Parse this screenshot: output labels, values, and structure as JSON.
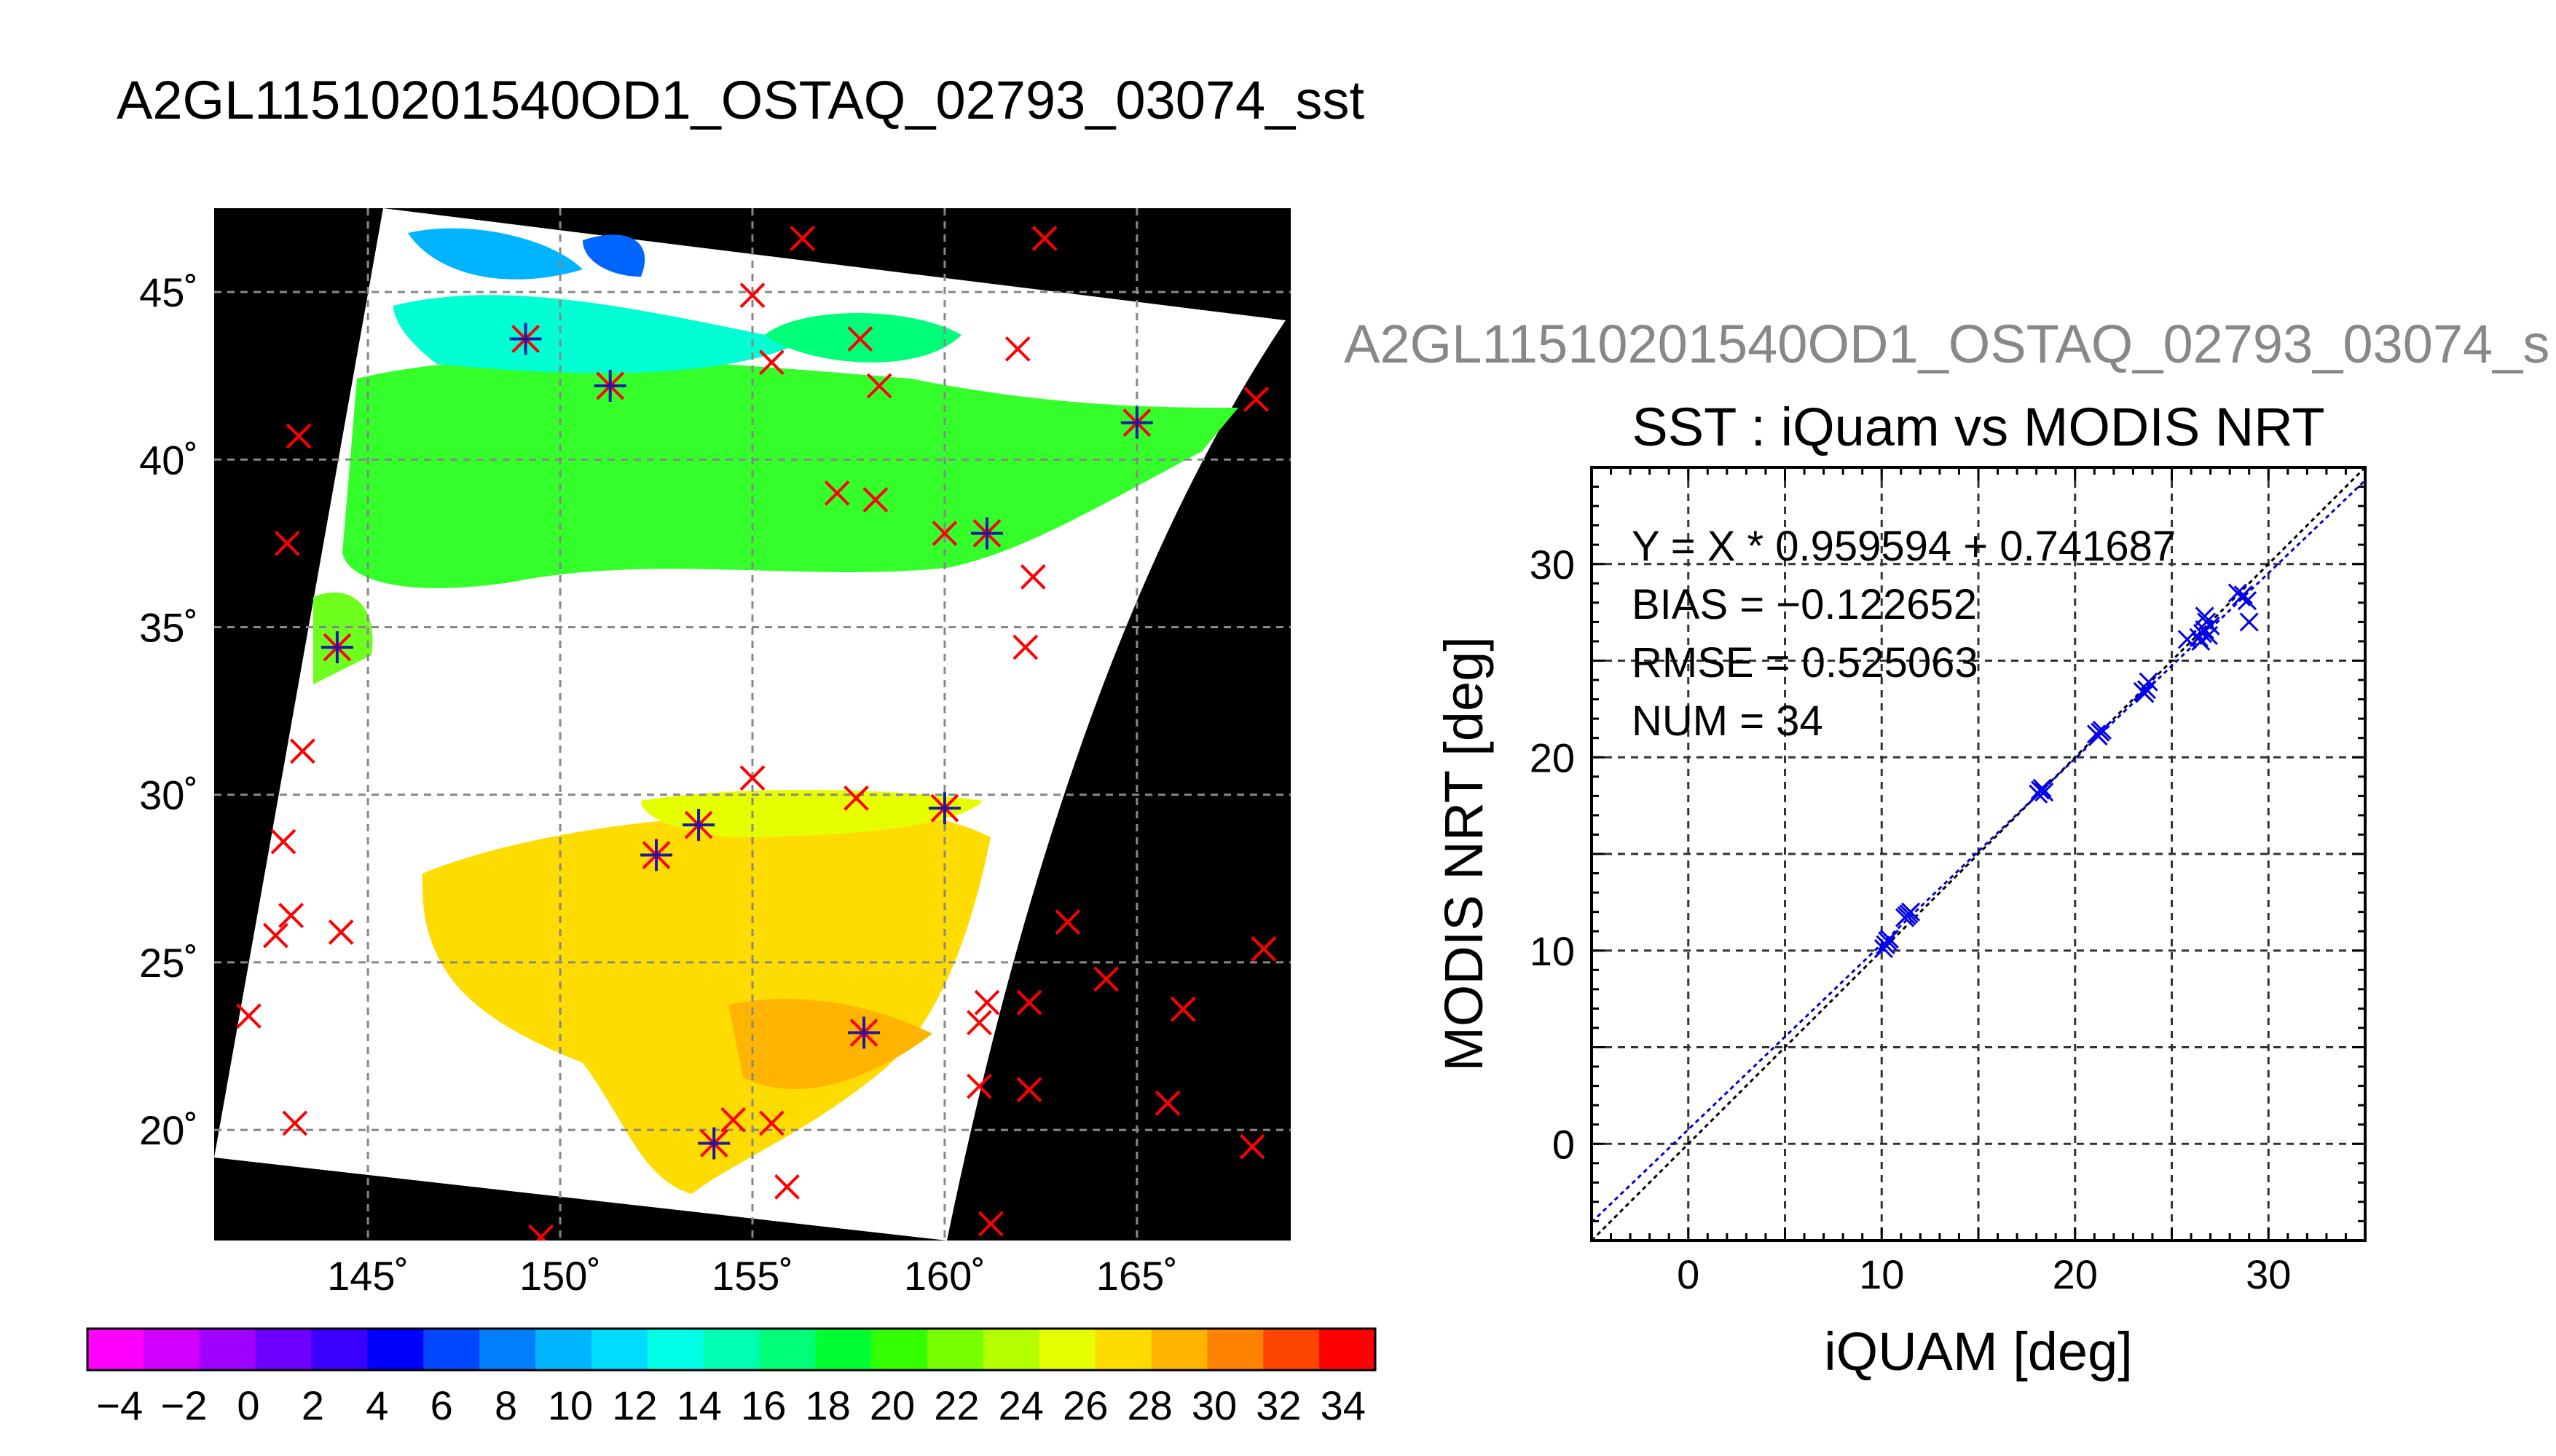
{
  "main_title": "A2GL11510201540OD1_OSTAQ_02793_03074_sst",
  "scatter_top_title": "A2GL11510201540OD1_OSTAQ_02793_03074_s",
  "colorbar": {
    "tick_labels": [
      "−4",
      "−2",
      "0",
      "2",
      "4",
      "6",
      "8",
      "10",
      "12",
      "14",
      "16",
      "18",
      "20",
      "22",
      "24",
      "26",
      "28",
      "30",
      "32",
      "34"
    ],
    "colors": [
      "#ff00ff",
      "#d200ff",
      "#a000ff",
      "#6e00ff",
      "#3c00ff",
      "#0000ff",
      "#0046ff",
      "#0080ff",
      "#00b4ff",
      "#00dcff",
      "#00ffe6",
      "#00ffb4",
      "#00ff78",
      "#00ff32",
      "#32ff00",
      "#78ff00",
      "#b4ff00",
      "#e6ff00",
      "#ffdc00",
      "#ffb400",
      "#ff8200",
      "#ff4600",
      "#ff0000"
    ]
  },
  "chart_data": [
    {
      "type": "scatter",
      "title": "A2GL11510201540OD1_OSTAQ_02793_03074_sst",
      "xlabel": "",
      "ylabel": "",
      "xlim": [
        141,
        169
      ],
      "ylim": [
        16.7,
        47.5
      ],
      "x_tick_labels": [
        "145˚",
        "150˚",
        "155˚",
        "160˚",
        "165˚"
      ],
      "x_ticks": [
        145,
        150,
        155,
        160,
        165
      ],
      "y_tick_labels": [
        "20˚",
        "25˚",
        "30˚",
        "35˚",
        "40˚",
        "45˚"
      ],
      "y_ticks": [
        20,
        25,
        30,
        35,
        40,
        45
      ],
      "grid": true,
      "series": [
        {
          "marker": "x",
          "color": "#ff0000",
          "points": [
            [
              156.3,
              46.6
            ],
            [
              162.6,
              46.6
            ],
            [
              155,
              44.9
            ],
            [
              155.5,
              42.9
            ],
            [
              157.8,
              43.6
            ],
            [
              158.3,
              42.2
            ],
            [
              161.9,
              43.3
            ],
            [
              168.1,
              41.8
            ],
            [
              143.2,
              40.7
            ],
            [
              157.2,
              39
            ],
            [
              158.2,
              38.8
            ],
            [
              160,
              37.8
            ],
            [
              162.3,
              36.5
            ],
            [
              142.9,
              37.5
            ],
            [
              162.1,
              34.4
            ],
            [
              143.3,
              31.3
            ],
            [
              155,
              30.5
            ],
            [
              157.7,
              29.9
            ],
            [
              142.8,
              28.6
            ],
            [
              143,
              26.4
            ],
            [
              142.6,
              25.8
            ],
            [
              144.3,
              25.9
            ],
            [
              163.2,
              26.2
            ],
            [
              168.3,
              25.4
            ],
            [
              164.2,
              24.5
            ],
            [
              161.1,
              23.8
            ],
            [
              162.2,
              23.8
            ],
            [
              166.2,
              23.6
            ],
            [
              141.9,
              23.4
            ],
            [
              160.9,
              23.2
            ],
            [
              160.9,
              21.3
            ],
            [
              162.2,
              21.2
            ],
            [
              165.8,
              20.8
            ],
            [
              143.1,
              20.2
            ],
            [
              155.5,
              20.2
            ],
            [
              154.5,
              20.3
            ],
            [
              168,
              19.5
            ],
            [
              155.9,
              18.3
            ],
            [
              161.2,
              17.2
            ],
            [
              149.5,
              16.8
            ]
          ]
        },
        {
          "marker": "asterisk",
          "color": "#1a1aa6",
          "points": [
            [
              149.1,
              43.6
            ],
            [
              151.3,
              42.2
            ],
            [
              165,
              41.1
            ],
            [
              161.1,
              37.8
            ],
            [
              144.2,
              34.4
            ],
            [
              152.5,
              28.2
            ],
            [
              153.6,
              29.1
            ],
            [
              160,
              29.6
            ],
            [
              157.9,
              22.9
            ],
            [
              154,
              19.6
            ]
          ]
        }
      ]
    },
    {
      "type": "scatter",
      "title": "SST : iQuam vs MODIS NRT",
      "xlabel": "iQUAM [deg]",
      "ylabel": "MODIS NRT [deg]",
      "xlim": [
        -5,
        35
      ],
      "ylim": [
        -5,
        35
      ],
      "x_ticks": [
        0,
        10,
        20,
        30
      ],
      "y_ticks": [
        0,
        10,
        20,
        30
      ],
      "grid": true,
      "annotations": [
        "Y = X * 0.959594 + 0.741687",
        "BIAS = −0.122652",
        "RMSE = 0.525063",
        "NUM = 34"
      ],
      "fit": {
        "slope": 0.959594,
        "intercept": 0.741687
      },
      "points": [
        [
          10.2,
          10.3
        ],
        [
          10.4,
          10.6
        ],
        [
          11.3,
          11.8
        ],
        [
          11.5,
          12
        ],
        [
          18.2,
          18.3
        ],
        [
          18.4,
          18.2
        ],
        [
          21.1,
          21.2
        ],
        [
          21.4,
          21.4
        ],
        [
          23.6,
          23.3
        ],
        [
          23.8,
          23.9
        ],
        [
          25.8,
          26.1
        ],
        [
          26.5,
          26
        ],
        [
          26.7,
          26.6
        ],
        [
          26.7,
          27.3
        ],
        [
          26.9,
          26.3
        ],
        [
          27,
          26.8
        ],
        [
          28.4,
          28.5
        ],
        [
          28.9,
          28.1
        ],
        [
          29,
          27
        ],
        [
          10.3,
          10.5
        ],
        [
          11.4,
          11.9
        ],
        [
          18.3,
          18.4
        ],
        [
          21.3,
          21.3
        ],
        [
          23.7,
          23.5
        ],
        [
          26.6,
          26.4
        ],
        [
          26.8,
          27
        ],
        [
          28.6,
          28.3
        ],
        [
          10.1,
          10.1
        ],
        [
          11.2,
          11.7
        ],
        [
          18.1,
          18.1
        ],
        [
          21.2,
          21.1
        ],
        [
          23.5,
          23.4
        ],
        [
          26.4,
          26.2
        ],
        [
          28.7,
          28.4
        ]
      ]
    }
  ]
}
